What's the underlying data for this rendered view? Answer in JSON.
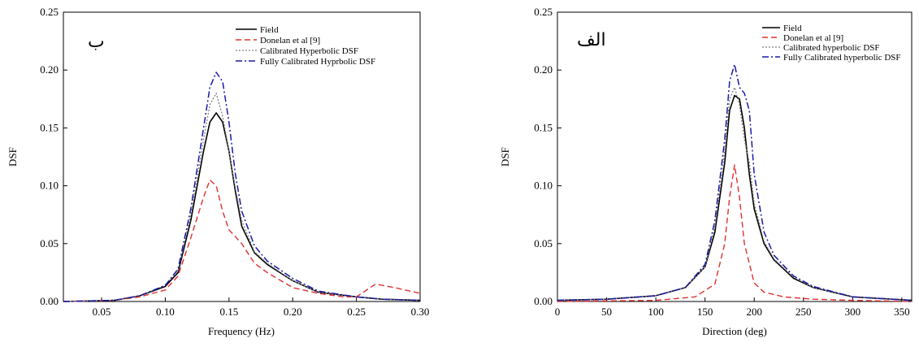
{
  "colors": {
    "field": "#000000",
    "donelan": "#e03030",
    "calibrated": "#808080",
    "fully": "#1a1aa6"
  },
  "chart_data": [
    {
      "type": "line",
      "panel_label": "ب",
      "xlabel": "Frequency (Hz)",
      "ylabel": "DSF",
      "xlim": [
        0.02,
        0.3
      ],
      "ylim": [
        0,
        0.25
      ],
      "xticks": [
        0.05,
        0.1,
        0.15,
        0.2,
        0.25,
        0.3
      ],
      "xtick_labels": [
        "0.05",
        "0.10",
        "0.15",
        "0.20",
        "0.25",
        "0.30"
      ],
      "yticks": [
        0,
        0.05,
        0.1,
        0.15,
        0.2,
        0.25
      ],
      "ytick_labels": [
        "0.00",
        "0.05",
        "0.10",
        "0.15",
        "0.20",
        "0.25"
      ],
      "legend_position": "top-right",
      "series": [
        {
          "name": "Field",
          "style": "solid",
          "color_key": "field",
          "x": [
            0.02,
            0.06,
            0.08,
            0.1,
            0.11,
            0.12,
            0.13,
            0.135,
            0.14,
            0.145,
            0.15,
            0.155,
            0.16,
            0.17,
            0.18,
            0.2,
            0.22,
            0.25,
            0.27,
            0.3
          ],
          "y": [
            0.0,
            0.001,
            0.005,
            0.013,
            0.025,
            0.07,
            0.13,
            0.155,
            0.163,
            0.155,
            0.13,
            0.095,
            0.065,
            0.042,
            0.032,
            0.018,
            0.008,
            0.004,
            0.002,
            0.001
          ]
        },
        {
          "name": "Donelan et al [9]",
          "style": "dashed",
          "color_key": "donelan",
          "x": [
            0.02,
            0.06,
            0.08,
            0.1,
            0.11,
            0.12,
            0.13,
            0.135,
            0.14,
            0.145,
            0.15,
            0.16,
            0.17,
            0.18,
            0.2,
            0.22,
            0.24,
            0.25,
            0.265,
            0.28,
            0.3
          ],
          "y": [
            0.0,
            0.001,
            0.004,
            0.01,
            0.022,
            0.055,
            0.09,
            0.105,
            0.1,
            0.078,
            0.062,
            0.05,
            0.033,
            0.025,
            0.012,
            0.007,
            0.004,
            0.004,
            0.015,
            0.012,
            0.007
          ]
        },
        {
          "name": "Calibrated Hyperbolic DSF",
          "style": "dotted",
          "color_key": "calibrated",
          "x": [
            0.02,
            0.06,
            0.08,
            0.1,
            0.11,
            0.12,
            0.13,
            0.135,
            0.14,
            0.145,
            0.15,
            0.155,
            0.16,
            0.17,
            0.18,
            0.2,
            0.22,
            0.25,
            0.27,
            0.3
          ],
          "y": [
            0.0,
            0.001,
            0.005,
            0.014,
            0.027,
            0.075,
            0.14,
            0.17,
            0.18,
            0.16,
            0.13,
            0.098,
            0.07,
            0.043,
            0.033,
            0.018,
            0.008,
            0.004,
            0.002,
            0.001
          ]
        },
        {
          "name": "Fully Calibrated Hyprbolic DSF",
          "style": "dashdot",
          "color_key": "fully",
          "x": [
            0.02,
            0.06,
            0.08,
            0.1,
            0.11,
            0.12,
            0.13,
            0.135,
            0.14,
            0.145,
            0.15,
            0.155,
            0.16,
            0.17,
            0.18,
            0.2,
            0.22,
            0.25,
            0.27,
            0.3
          ],
          "y": [
            0.0,
            0.001,
            0.005,
            0.014,
            0.028,
            0.08,
            0.15,
            0.185,
            0.198,
            0.19,
            0.155,
            0.11,
            0.078,
            0.048,
            0.035,
            0.02,
            0.009,
            0.004,
            0.002,
            0.001
          ]
        }
      ]
    },
    {
      "type": "line",
      "panel_label": "الف",
      "xlabel": "Direction (deg)",
      "ylabel": "DSF",
      "xlim": [
        0,
        360
      ],
      "ylim": [
        0,
        0.25
      ],
      "xticks": [
        0,
        50,
        100,
        150,
        200,
        250,
        300,
        350
      ],
      "xtick_labels": [
        "0",
        "50",
        "100",
        "150",
        "200",
        "250",
        "300",
        "350"
      ],
      "yticks": [
        0,
        0.05,
        0.1,
        0.15,
        0.2,
        0.25
      ],
      "ytick_labels": [
        "0.00",
        "0.05",
        "0.10",
        "0.15",
        "0.20",
        "0.25"
      ],
      "legend_position": "top-right",
      "series": [
        {
          "name": "Field",
          "style": "solid",
          "color_key": "field",
          "x": [
            0,
            50,
            100,
            130,
            150,
            160,
            170,
            175,
            180,
            185,
            190,
            195,
            200,
            210,
            220,
            240,
            260,
            300,
            360
          ],
          "y": [
            0.001,
            0.002,
            0.005,
            0.012,
            0.03,
            0.06,
            0.12,
            0.165,
            0.178,
            0.175,
            0.15,
            0.11,
            0.08,
            0.05,
            0.036,
            0.02,
            0.012,
            0.004,
            0.001
          ]
        },
        {
          "name": "Donelan et al [9]",
          "style": "dashed",
          "color_key": "donelan",
          "x": [
            0,
            100,
            140,
            160,
            170,
            175,
            180,
            185,
            190,
            200,
            210,
            230,
            260,
            300,
            360
          ],
          "y": [
            0.0,
            0.001,
            0.004,
            0.015,
            0.05,
            0.09,
            0.118,
            0.09,
            0.05,
            0.016,
            0.008,
            0.004,
            0.002,
            0.001,
            0.0
          ]
        },
        {
          "name": "Calibrated hyperbolic DSF",
          "style": "dotted",
          "color_key": "calibrated",
          "x": [
            0,
            50,
            100,
            130,
            150,
            160,
            170,
            175,
            180,
            185,
            190,
            195,
            200,
            210,
            220,
            240,
            260,
            300,
            360
          ],
          "y": [
            0.001,
            0.002,
            0.005,
            0.012,
            0.03,
            0.065,
            0.13,
            0.175,
            0.185,
            0.17,
            0.14,
            0.12,
            0.085,
            0.052,
            0.037,
            0.021,
            0.012,
            0.004,
            0.001
          ]
        },
        {
          "name": "Fully Calibrated hyperbolic DSF",
          "style": "dashdot",
          "color_key": "fully",
          "x": [
            0,
            50,
            100,
            130,
            150,
            160,
            170,
            175,
            180,
            185,
            190,
            195,
            200,
            210,
            220,
            240,
            260,
            300,
            360
          ],
          "y": [
            0.001,
            0.002,
            0.005,
            0.012,
            0.032,
            0.07,
            0.14,
            0.19,
            0.205,
            0.185,
            0.18,
            0.165,
            0.11,
            0.06,
            0.04,
            0.022,
            0.013,
            0.004,
            0.001
          ]
        }
      ]
    }
  ]
}
